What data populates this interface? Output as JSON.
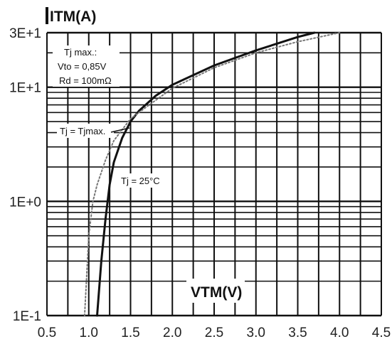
{
  "chart_data": {
    "type": "line",
    "xlabel": "VTM(V)",
    "ylabel": "ITM(A)",
    "xlim": [
      0.5,
      4.5
    ],
    "ylim": [
      0.1,
      30
    ],
    "yscale": "log",
    "grid": true,
    "x_ticks": [
      "0.5",
      "1.0",
      "1.5",
      "2.0",
      "2.5",
      "3.0",
      "3.5",
      "4.0",
      "4.5"
    ],
    "y_ticks": [
      {
        "value": 30,
        "label": "3E+1"
      },
      {
        "value": 10,
        "label": "1E+1"
      },
      {
        "value": 1,
        "label": "1E+0"
      },
      {
        "value": 0.1,
        "label": "1E-1"
      }
    ],
    "annotations": {
      "max_box": [
        "Tj max.:",
        "Vto = 0,85V",
        "Rd = 100mΩ"
      ],
      "tj_max": "Tj = Tjmax.",
      "tj_25": "Tj = 25°C"
    },
    "series": [
      {
        "label": "Tj = 25°C",
        "style": "solid",
        "color": "#111111",
        "x": [
          1.1,
          1.15,
          1.2,
          1.25,
          1.3,
          1.4,
          1.5,
          1.6,
          1.8,
          2.0,
          2.5,
          3.0,
          3.5,
          3.7
        ],
        "y": [
          0.1,
          0.3,
          0.7,
          1.4,
          2.2,
          3.6,
          5.0,
          6.2,
          8.4,
          10.5,
          15.5,
          21.0,
          27.5,
          30
        ]
      },
      {
        "label": "Tj = Tjmax.",
        "style": "dotted",
        "color": "#777777",
        "x": [
          0.95,
          1.0,
          1.05,
          1.1,
          1.2,
          1.3,
          1.5,
          1.7,
          2.0,
          2.5,
          3.0,
          3.5,
          4.0
        ],
        "y": [
          0.1,
          0.5,
          1.0,
          1.4,
          2.3,
          3.4,
          5.3,
          6.8,
          9.8,
          14.8,
          20.0,
          25.0,
          30
        ]
      }
    ]
  }
}
